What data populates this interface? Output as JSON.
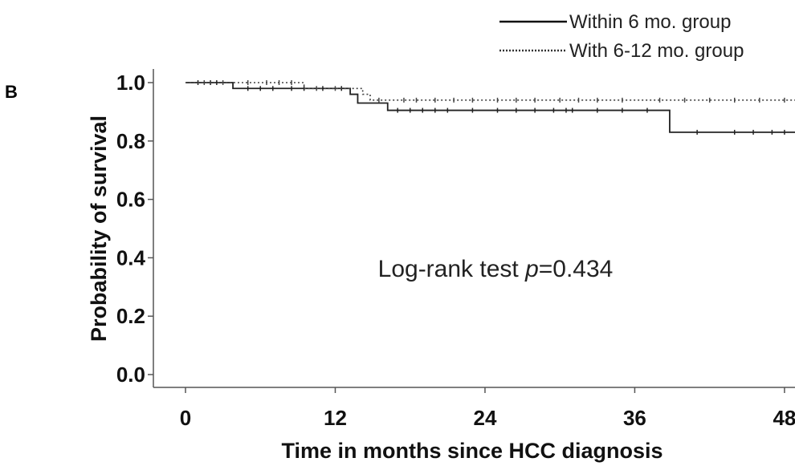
{
  "panel_label": "B",
  "chart_data": {
    "type": "line",
    "title": "",
    "xlabel": "Time in months since HCC diagnosis",
    "ylabel": "Probability of survival",
    "xlim": [
      0,
      50
    ],
    "ylim": [
      0,
      1.05
    ],
    "x_ticks": [
      0,
      12,
      24,
      36,
      48
    ],
    "y_ticks": [
      "0.0",
      "0.2",
      "0.4",
      "0.6",
      "0.8",
      "1.0"
    ],
    "grid": false,
    "legend_position": "top-right",
    "annotation": {
      "prefix": "Log-rank test ",
      "italic": "p",
      "suffix": "=0.434"
    },
    "series": [
      {
        "name": "Within 6 mo. group",
        "line_style": "solid",
        "color": "#222222",
        "steps": [
          [
            0,
            1.0
          ],
          [
            3.8,
            0.98
          ],
          [
            13.2,
            0.96
          ],
          [
            13.8,
            0.93
          ],
          [
            16.2,
            0.905
          ],
          [
            38.8,
            0.83
          ],
          [
            50,
            0.83
          ]
        ],
        "censor_times": [
          1,
          2,
          2.5,
          5,
          6,
          7,
          8.5,
          9.5,
          11,
          12.5,
          17,
          18,
          19,
          20,
          21,
          23,
          25,
          26.5,
          28,
          29.5,
          30.5,
          31,
          33,
          35,
          37,
          41,
          44,
          45.5,
          47,
          48
        ]
      },
      {
        "name": "With 6-12 mo. group",
        "line_style": "dotted",
        "color": "#444444",
        "steps": [
          [
            0,
            1.0
          ],
          [
            9.5,
            0.98
          ],
          [
            14.2,
            0.96
          ],
          [
            14.8,
            0.94
          ],
          [
            50,
            0.94
          ]
        ],
        "censor_times": [
          1.5,
          3,
          5,
          6.5,
          7.5,
          8.5,
          10.5,
          12,
          15.5,
          17.5,
          18.5,
          20,
          21.5,
          23,
          25,
          26.5,
          28,
          30,
          31.5,
          33,
          35,
          38,
          40,
          42,
          44,
          46,
          48
        ]
      }
    ]
  }
}
